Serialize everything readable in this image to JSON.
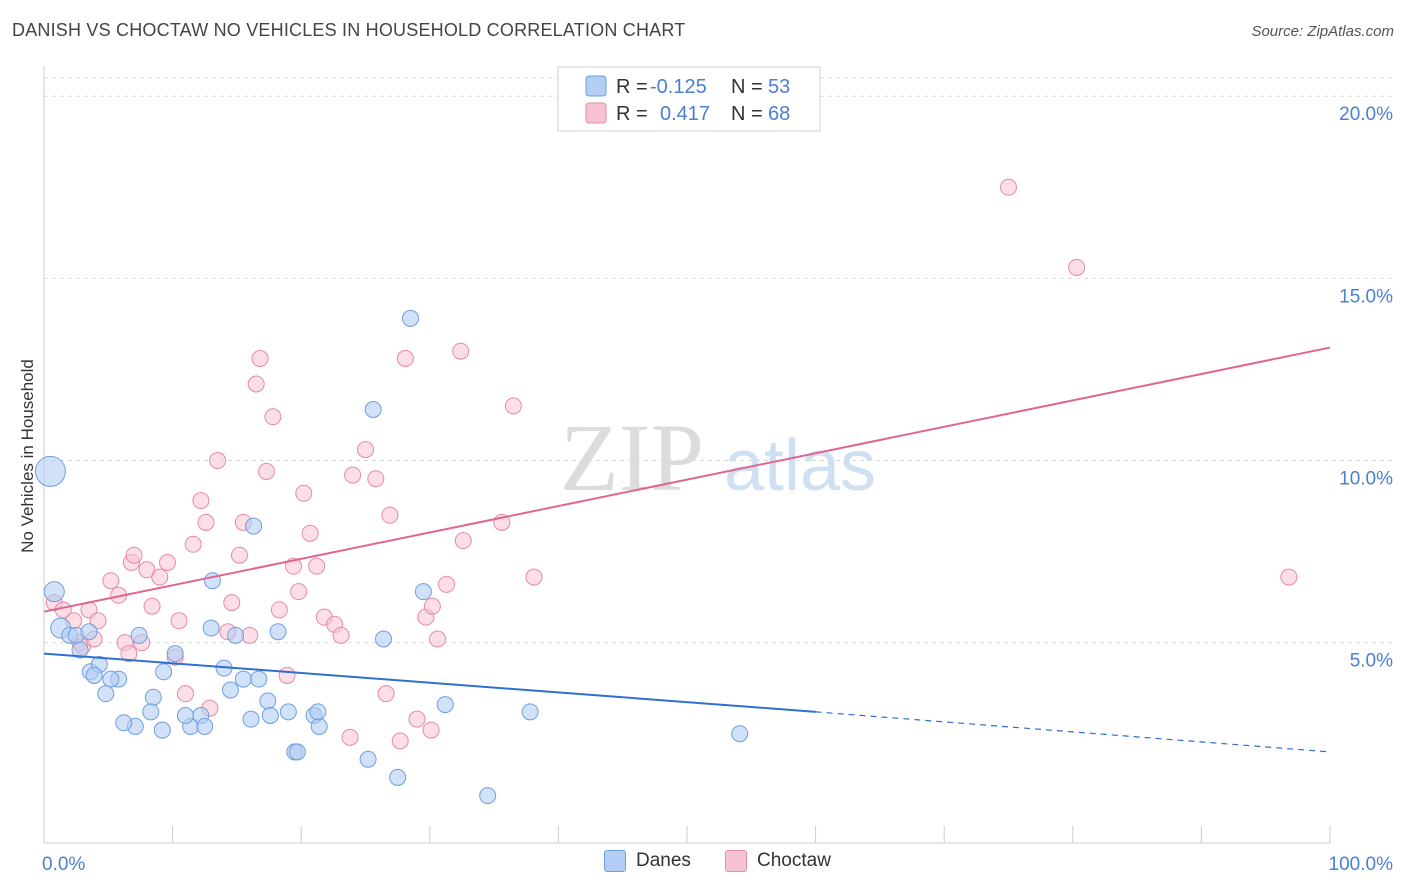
{
  "header": {
    "title": "DANISH VS CHOCTAW NO VEHICLES IN HOUSEHOLD CORRELATION CHART",
    "source": "Source: ZipAtlas.com"
  },
  "watermark": {
    "zip": "ZIP",
    "atlas": "atlas"
  },
  "colors": {
    "danes_fill": "#b3cdf4",
    "danes_stroke": "#6f9fe0",
    "danes_line": "#2f6fd0",
    "choctaw_fill": "#f7c3d2",
    "choctaw_stroke": "#e68aa6",
    "choctaw_line": "#e06690",
    "axis_text": "#4a7fd4",
    "grid": "#d9d9d9"
  },
  "legend": {
    "rows": [
      {
        "r_label": "R =",
        "r_value": "-0.125",
        "n_label": "N =",
        "n_value": "53"
      },
      {
        "r_label": "R =",
        "r_value": "0.417",
        "n_label": "N =",
        "n_value": "68"
      }
    ]
  },
  "bottom_legend": {
    "danes": "Danes",
    "choctaw": "Choctaw"
  },
  "chart_data": {
    "type": "scatter",
    "title": "DANISH VS CHOCTAW NO VEHICLES IN HOUSEHOLD CORRELATION CHART",
    "xlabel": "",
    "ylabel": "No Vehicles in Household",
    "xlim": [
      0,
      100
    ],
    "ylim": [
      -0.5,
      20.5
    ],
    "x_tick_labels": [
      {
        "value": 0,
        "label": "0.0%"
      },
      {
        "value": 100,
        "label": "100.0%"
      }
    ],
    "x_minor_ticks": [
      0,
      10,
      20,
      30,
      40,
      50,
      60,
      70,
      80,
      90,
      100
    ],
    "y_tick_labels": [
      {
        "value": 5,
        "label": "5.0%"
      },
      {
        "value": 10,
        "label": "10.0%"
      },
      {
        "value": 15,
        "label": "15.0%"
      },
      {
        "value": 20,
        "label": "20.0%"
      }
    ],
    "grid_y": [
      5,
      10,
      15,
      20
    ],
    "series": [
      {
        "name": "Danes",
        "r": -0.125,
        "n": 53,
        "trend": {
          "x0": 0,
          "y0": 4.7,
          "x1": 60,
          "y1": 3.1,
          "dashed_to_x": 100,
          "dashed_to_y": 2.0
        },
        "points": [
          [
            0.5,
            9.7,
            "l"
          ],
          [
            0.8,
            6.4,
            "m"
          ],
          [
            1.3,
            5.4,
            "m"
          ],
          [
            2,
            5.2,
            "s"
          ],
          [
            2.5,
            5.2,
            "s"
          ],
          [
            3.5,
            5.3,
            "s"
          ],
          [
            2.8,
            4.8,
            "s"
          ],
          [
            3.6,
            4.2,
            "s"
          ],
          [
            4.3,
            4.4,
            "s"
          ],
          [
            3.9,
            4.1,
            "s"
          ],
          [
            5.8,
            4.0,
            "s"
          ],
          [
            5.2,
            4.0,
            "s"
          ],
          [
            4.8,
            3.6,
            "s"
          ],
          [
            7.4,
            5.2,
            "s"
          ],
          [
            8.5,
            3.5,
            "s"
          ],
          [
            9.3,
            4.2,
            "s"
          ],
          [
            10.2,
            4.7,
            "s"
          ],
          [
            13.0,
            5.4,
            "s"
          ],
          [
            13.1,
            6.7,
            "s"
          ],
          [
            14.0,
            4.3,
            "s"
          ],
          [
            14.5,
            3.7,
            "s"
          ],
          [
            14.9,
            5.2,
            "s"
          ],
          [
            15.5,
            4.0,
            "s"
          ],
          [
            16.1,
            2.9,
            "s"
          ],
          [
            16.7,
            4.0,
            "s"
          ],
          [
            16.3,
            8.2,
            "s"
          ],
          [
            17.4,
            3.4,
            "s"
          ],
          [
            17.6,
            3.0,
            "s"
          ],
          [
            18.2,
            5.3,
            "s"
          ],
          [
            19.0,
            3.1,
            "s"
          ],
          [
            19.5,
            2.0,
            "s"
          ],
          [
            19.7,
            2.0,
            "s"
          ],
          [
            21.0,
            3.0,
            "s"
          ],
          [
            21.4,
            2.7,
            "s"
          ],
          [
            25.2,
            1.8,
            "s"
          ],
          [
            25.6,
            11.4,
            "s"
          ],
          [
            26.4,
            5.1,
            "s"
          ],
          [
            27.5,
            1.3,
            "s"
          ],
          [
            28.5,
            13.9,
            "s"
          ],
          [
            29.5,
            6.4,
            "s"
          ],
          [
            31.2,
            3.3,
            "s"
          ],
          [
            34.5,
            0.8,
            "s"
          ],
          [
            37.8,
            3.1,
            "s"
          ],
          [
            54.1,
            2.5,
            "s"
          ],
          [
            7.1,
            2.7,
            "s"
          ],
          [
            9.2,
            2.6,
            "s"
          ],
          [
            11.4,
            2.7,
            "s"
          ],
          [
            12.2,
            3.0,
            "s"
          ],
          [
            6.2,
            2.8,
            "s"
          ],
          [
            11.0,
            3.0,
            "s"
          ],
          [
            12.5,
            2.7,
            "s"
          ],
          [
            8.3,
            3.1,
            "s"
          ],
          [
            21.3,
            3.1,
            "s"
          ]
        ]
      },
      {
        "name": "Choctaw",
        "r": 0.417,
        "n": 68,
        "trend": {
          "x0": 0,
          "y0": 5.85,
          "x1": 100,
          "y1": 13.1
        },
        "points": [
          [
            0.8,
            6.1
          ],
          [
            1.5,
            5.9
          ],
          [
            2.3,
            5.6
          ],
          [
            2.8,
            5.0
          ],
          [
            3.0,
            4.9
          ],
          [
            3.5,
            5.9
          ],
          [
            3.9,
            5.1
          ],
          [
            4.2,
            5.6
          ],
          [
            5.2,
            6.7
          ],
          [
            5.8,
            6.3
          ],
          [
            6.3,
            5.0
          ],
          [
            6.6,
            4.7
          ],
          [
            6.8,
            7.2
          ],
          [
            7.0,
            7.4
          ],
          [
            7.6,
            5.0
          ],
          [
            8.0,
            7.0
          ],
          [
            8.4,
            6.0
          ],
          [
            9.0,
            6.8
          ],
          [
            9.6,
            7.2
          ],
          [
            10.2,
            4.6
          ],
          [
            10.5,
            5.6
          ],
          [
            11.0,
            3.6
          ],
          [
            11.6,
            7.7
          ],
          [
            12.2,
            8.9
          ],
          [
            12.6,
            8.3
          ],
          [
            12.9,
            3.2
          ],
          [
            13.5,
            10.0
          ],
          [
            14.3,
            5.3
          ],
          [
            14.6,
            6.1
          ],
          [
            15.2,
            7.4
          ],
          [
            15.5,
            8.3
          ],
          [
            16.0,
            5.2
          ],
          [
            16.5,
            12.1
          ],
          [
            16.8,
            12.8
          ],
          [
            17.3,
            9.7
          ],
          [
            17.8,
            11.2
          ],
          [
            18.3,
            5.9
          ],
          [
            18.9,
            4.1
          ],
          [
            19.4,
            7.1
          ],
          [
            19.8,
            6.4
          ],
          [
            20.2,
            9.1
          ],
          [
            20.7,
            8.0
          ],
          [
            21.2,
            7.1
          ],
          [
            21.8,
            5.7
          ],
          [
            22.6,
            5.5
          ],
          [
            23.1,
            5.2
          ],
          [
            23.8,
            2.4
          ],
          [
            24.0,
            9.6
          ],
          [
            25.0,
            10.3
          ],
          [
            25.8,
            9.5
          ],
          [
            26.6,
            3.6
          ],
          [
            26.9,
            8.5
          ],
          [
            27.7,
            2.3
          ],
          [
            28.1,
            12.8
          ],
          [
            29.0,
            2.9
          ],
          [
            29.7,
            5.7
          ],
          [
            30.2,
            6.0
          ],
          [
            30.6,
            5.1
          ],
          [
            31.3,
            6.6
          ],
          [
            32.4,
            13.0
          ],
          [
            32.6,
            7.8
          ],
          [
            35.6,
            8.3
          ],
          [
            36.5,
            11.5
          ],
          [
            38.1,
            6.8
          ],
          [
            75.0,
            17.5
          ],
          [
            80.3,
            15.3
          ],
          [
            96.8,
            6.8
          ],
          [
            30.1,
            2.6
          ]
        ]
      }
    ]
  }
}
